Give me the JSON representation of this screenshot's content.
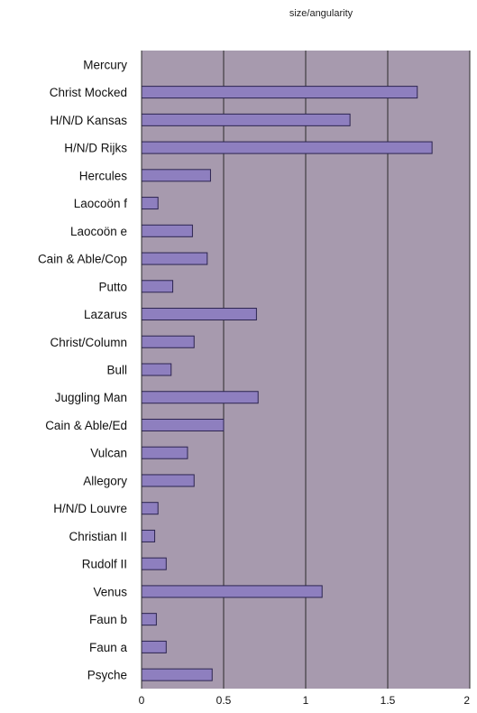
{
  "chart_data": {
    "type": "bar",
    "orientation": "horizontal",
    "title": "size/angularity",
    "xlabel": "",
    "ylabel": "",
    "xlim": [
      0,
      2
    ],
    "xticks": [
      "0",
      "0.5",
      "1",
      "1.5",
      "2"
    ],
    "xtick_values": [
      0,
      0.5,
      1,
      1.5,
      2
    ],
    "grid": "vertical",
    "legend": "none",
    "categories": [
      "Mercury",
      "Christ Mocked",
      "H/N/D Kansas",
      "H/N/D Rijks",
      "Hercules",
      "Laocoön f",
      "Laocoön e",
      "Cain & Able/Cop",
      "Putto",
      "Lazarus",
      "Christ/Column",
      "Bull",
      "Juggling Man",
      "Cain & Able/Ed",
      "Vulcan",
      "Allegory",
      "H/N/D Louvre",
      "Christian II",
      "Rudolf II",
      "Venus",
      "Faun b",
      "Faun a",
      "Psyche"
    ],
    "values": [
      0,
      1.68,
      1.27,
      1.77,
      0.42,
      0.1,
      0.31,
      0.4,
      0.19,
      0.7,
      0.32,
      0.18,
      0.71,
      0.5,
      0.28,
      0.32,
      0.1,
      0.08,
      0.15,
      1.1,
      0.09,
      0.15,
      0.43
    ],
    "colors": {
      "plot_bg": "#a79aae",
      "bar_fill": "#8e7fbf",
      "bar_stroke": "#2c2450",
      "grid": "#2b2b2b"
    }
  }
}
